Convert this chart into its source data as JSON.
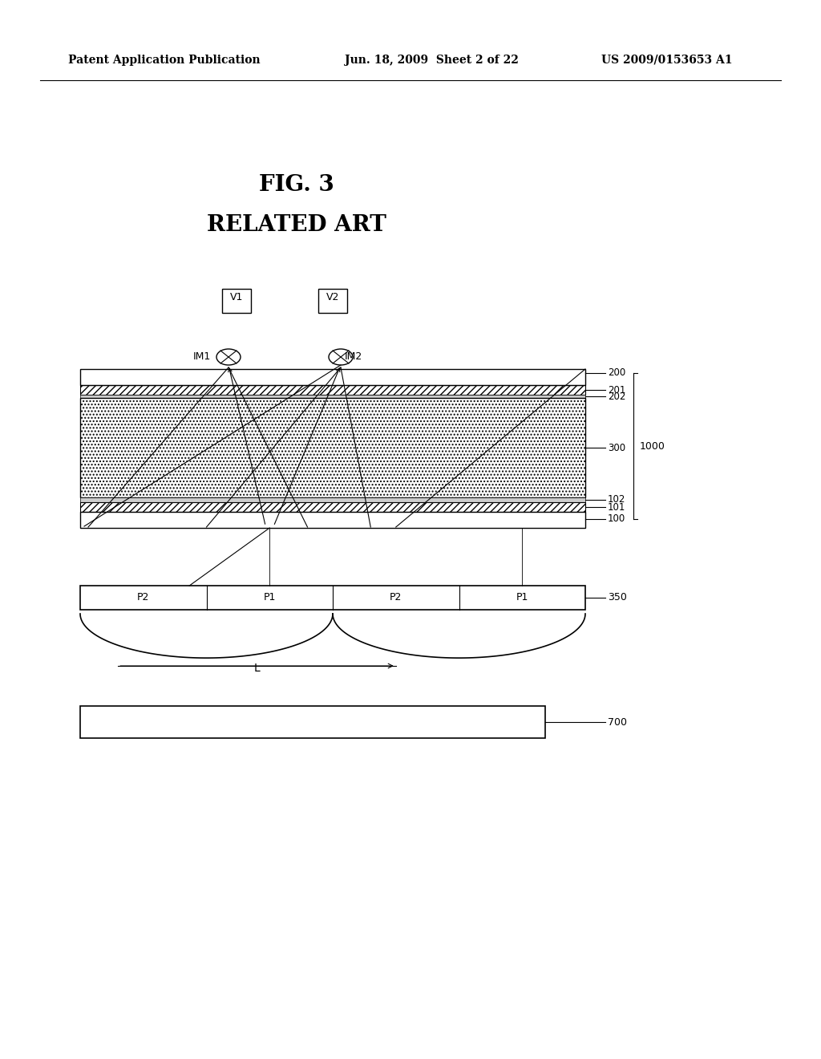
{
  "bg_color": "#ffffff",
  "header_left": "Patent Application Publication",
  "header_mid": "Jun. 18, 2009  Sheet 2 of 22",
  "header_right": "US 2009/0153653 A1",
  "title_line1": "FIG. 3",
  "title_line2": "RELATED ART",
  "layer_labels": [
    "200",
    "201",
    "202",
    "300",
    "102",
    "101",
    "100"
  ],
  "bracket_label": "1000",
  "label_350": "350",
  "label_700": "700",
  "label_L": "L",
  "pixel_labels": [
    "P2",
    "P1",
    "P2",
    "P1"
  ],
  "viewpoint_labels": [
    "V1",
    "V2"
  ],
  "image_labels": [
    "IM1",
    "IM2"
  ]
}
